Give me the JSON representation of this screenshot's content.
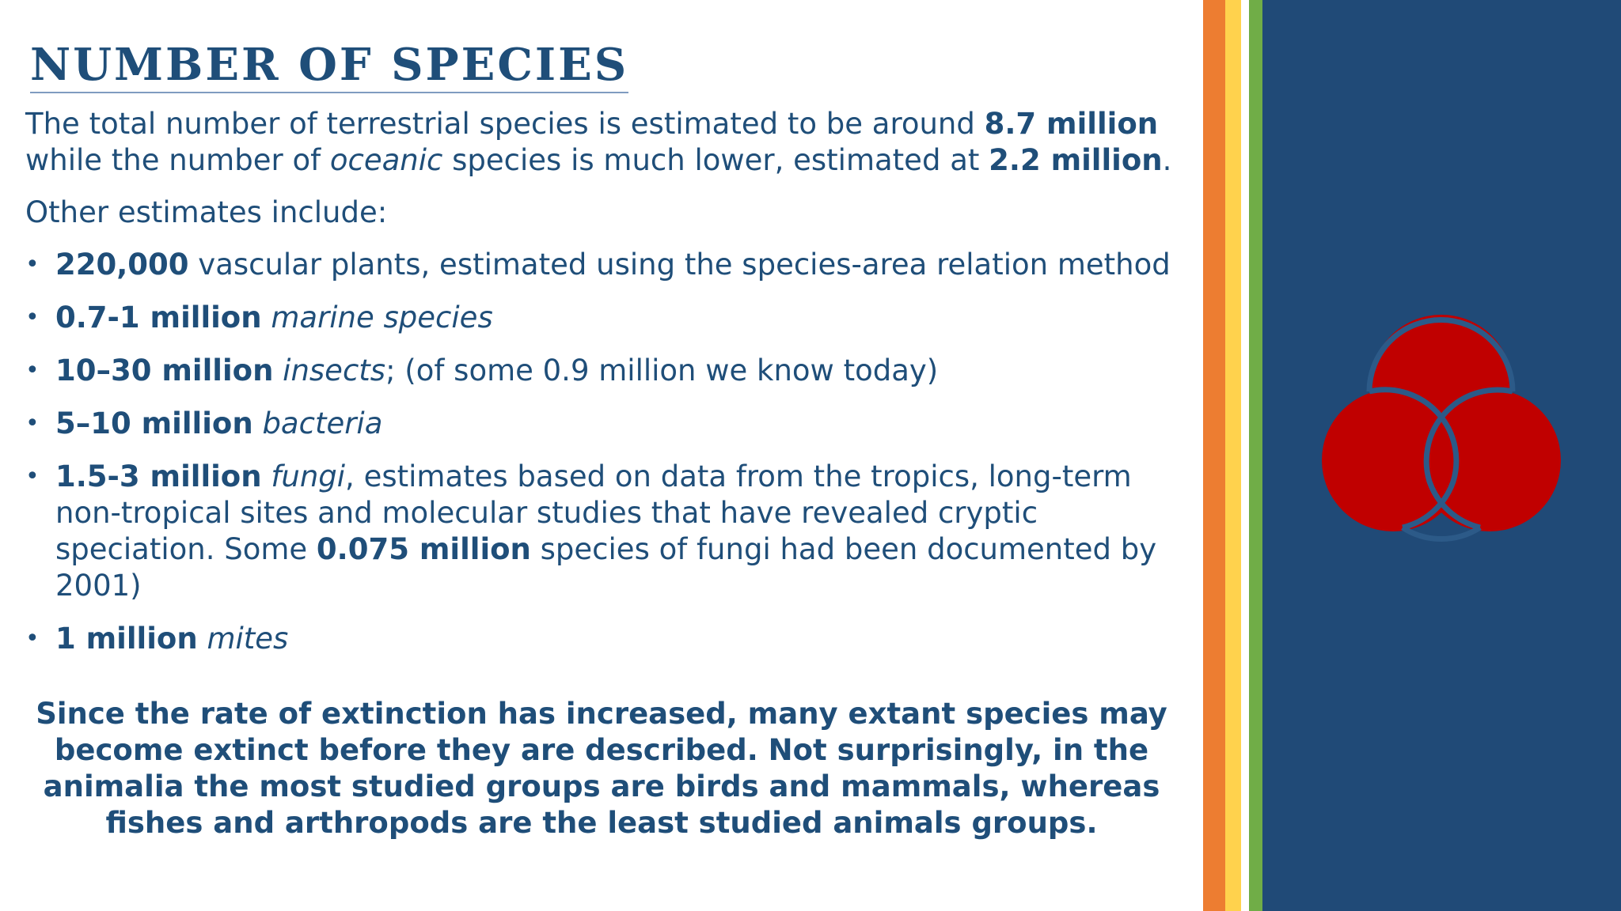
{
  "title": "NUMBER OF SPECIES",
  "intro": {
    "t1": "The total number of terrestrial species is estimated to be around ",
    "b1": "8.7 million",
    "t2": " while the number of ",
    "i1": "oceanic",
    "t3": " species is much lower, estimated at ",
    "b2": "2.2 million",
    "t4": "."
  },
  "other_estimates": "Other estimates include:",
  "bullets": [
    {
      "bold": "220,000",
      "text": " vascular plants, estimated using the species-area relation method"
    },
    {
      "bold": "0.7-1 million",
      "italic": "marine species"
    },
    {
      "bold": "10–30 million",
      "italic": "insects",
      "text": "; (of some 0.9 million we know today)"
    },
    {
      "bold": "5–10 million",
      "italic": "bacteria"
    },
    {
      "bold": "1.5-3 million",
      "italic": "fungi",
      "text": ", estimates based on data from the tropics, long-term non-tropical sites and molecular studies that have revealed cryptic speciation. Some ",
      "bold2": "0.075 million",
      "text2": " species of fungi had been documented by 2001)"
    },
    {
      "bold": "1 million",
      "italic": "mites"
    }
  ],
  "conclusion": "Since the rate of extinction has increased, many extant species may become extinct before they are described. Not surprisingly, in the animalia the most studied groups are birds and mammals, whereas fishes and arthropods are the least studied animals groups.",
  "colors": {
    "text": "#1f4e79",
    "panel": "#204a77",
    "stripe_orange": "#ed7d31",
    "stripe_yellow": "#ffd24d",
    "stripe_green": "#70ad47",
    "logo_red": "#c00000"
  },
  "icons": [
    "bullet-dot",
    "three-circles-logo"
  ]
}
